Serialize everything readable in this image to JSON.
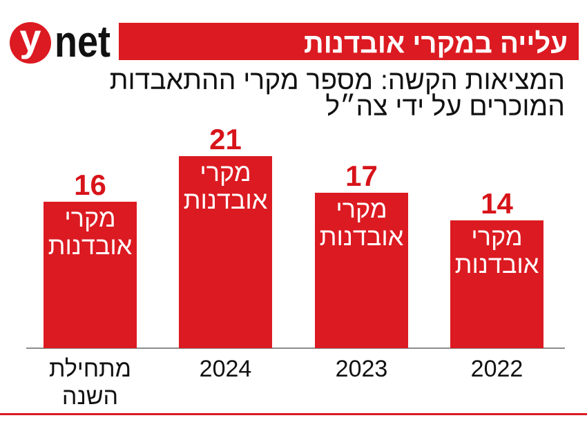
{
  "logo": {
    "mark": "y",
    "word": "net"
  },
  "colors": {
    "brand_red": "#dc1a21",
    "value_red": "#d7141a",
    "text": "#111111",
    "axis": "#8c8c8c",
    "bar_text": "#ffffff"
  },
  "chart_data": {
    "type": "bar",
    "title": "עלייה במקרי אובדנות",
    "subtitle_lines": [
      "המציאות הקשה: מספר מקרי ההתאבדות",
      "המוכרים על ידי צה״ל"
    ],
    "categories": [
      "2022",
      "2023",
      "2024",
      "מתחילת השנה"
    ],
    "values": [
      14,
      17,
      21,
      16
    ],
    "bar_text_lines": [
      "מקרי",
      "אובדנות"
    ],
    "xlabel": "",
    "ylabel": "",
    "ylim": [
      0,
      25
    ],
    "grid": false
  }
}
